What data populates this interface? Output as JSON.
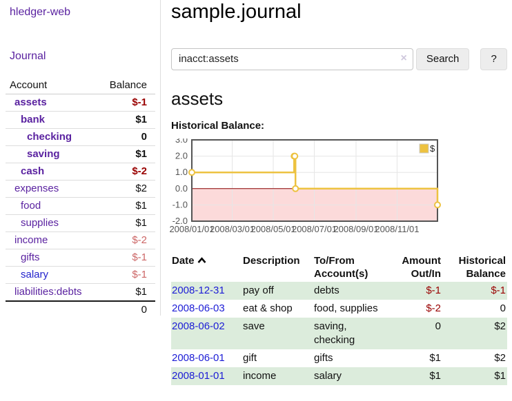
{
  "sidebar": {
    "brand": "hledger-web",
    "nav": {
      "journal": "Journal"
    },
    "table": {
      "account_header": "Account",
      "balance_header": "Balance",
      "accounts": [
        {
          "name": "assets",
          "balance": "$-1"
        },
        {
          "name": "bank",
          "balance": "$1"
        },
        {
          "name": "checking",
          "balance": "0"
        },
        {
          "name": "saving",
          "balance": "$1"
        },
        {
          "name": "cash",
          "balance": "$-2"
        },
        {
          "name": "expenses",
          "balance": "$2"
        },
        {
          "name": "food",
          "balance": "$1"
        },
        {
          "name": "supplies",
          "balance": "$1"
        },
        {
          "name": "income",
          "balance": "$-2"
        },
        {
          "name": "gifts",
          "balance": "$-1"
        },
        {
          "name": "salary",
          "balance": "$-1"
        },
        {
          "name": "liabilities:debts",
          "balance": "$1"
        }
      ],
      "total": "0"
    }
  },
  "main": {
    "title": "sample.journal",
    "search": {
      "value": "inacct:assets",
      "clear_icon": "×",
      "search_button": "Search",
      "help_button": "?"
    },
    "account_heading": "assets",
    "chart_heading": "Historical Balance:",
    "register": {
      "headers": {
        "date": "Date",
        "description": "Description",
        "accounts": "To/From Account(s)",
        "amount": "Amount Out/In",
        "balance": "Historical Balance"
      },
      "rows": [
        {
          "date": "2008-12-31",
          "description": "pay off",
          "accounts": "debts",
          "amount": "$-1",
          "balance": "$-1"
        },
        {
          "date": "2008-06-03",
          "description": "eat & shop",
          "accounts": "food, supplies",
          "amount": "$-2",
          "balance": "0"
        },
        {
          "date": "2008-06-02",
          "description": "save",
          "accounts": "saving, checking",
          "amount": "0",
          "balance": "$2"
        },
        {
          "date": "2008-06-01",
          "description": "gift",
          "accounts": "gifts",
          "amount": "$1",
          "balance": "$2"
        },
        {
          "date": "2008-01-01",
          "description": "income",
          "accounts": "salary",
          "amount": "$1",
          "balance": "$1"
        }
      ]
    }
  },
  "chart_data": {
    "type": "line",
    "title": "Historical Balance:",
    "steps": true,
    "series": [
      {
        "name": "$",
        "color": "#edc240",
        "points": [
          {
            "date": "2008-01-01",
            "day": 0,
            "value": 1
          },
          {
            "date": "2008-06-01",
            "day": 152,
            "value": 2
          },
          {
            "date": "2008-06-02",
            "day": 153,
            "value": 2
          },
          {
            "date": "2008-06-03",
            "day": 154,
            "value": 0
          },
          {
            "date": "2008-12-31",
            "day": 365,
            "value": -1
          }
        ]
      }
    ],
    "x_ticks": [
      {
        "day": 0,
        "label": "2008/01/01"
      },
      {
        "day": 60,
        "label": "2008/03/01"
      },
      {
        "day": 121,
        "label": "2008/05/01"
      },
      {
        "day": 182,
        "label": "2008/07/01"
      },
      {
        "day": 244,
        "label": "2008/09/01"
      },
      {
        "day": 305,
        "label": "2008/11/01"
      }
    ],
    "y_ticks": [
      "3.0",
      "2.0",
      "1.0",
      "0.0",
      "-1.0",
      "-2.0"
    ],
    "ylim": [
      -2,
      3
    ],
    "xlim_days": [
      0,
      365
    ],
    "grid": true,
    "border_color": "#545454",
    "gridline_color": "#e6e6e6",
    "tick_label_color": "#545454",
    "negative_region_color": "#fcdada",
    "zero_line_color": "#8b0000",
    "legend": {
      "label": "$",
      "position": "top-right"
    }
  }
}
